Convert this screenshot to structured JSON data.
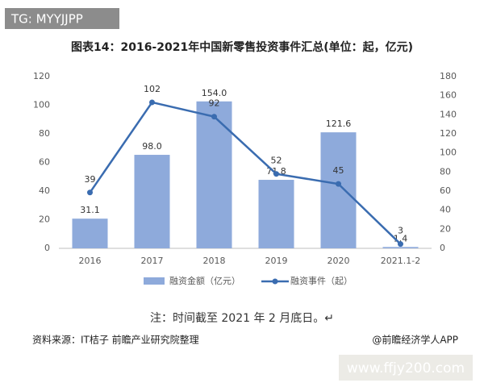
{
  "watermark_top": "TG: MYYJJPP",
  "chart_data": {
    "type": "combo",
    "title": "图表14：2016-2021年中国新零售投资事件汇总(单位：起，亿元)",
    "categories": [
      "2016",
      "2017",
      "2018",
      "2019",
      "2020",
      "2021.1-2"
    ],
    "series": [
      {
        "name": "融资金额（亿元）",
        "type": "bar",
        "axis": "y2",
        "color": "#8eaadb",
        "values": [
          31.1,
          98.0,
          154.0,
          71.8,
          121.6,
          1.4
        ],
        "value_labels": [
          "31.1",
          "98.0",
          "154.0",
          "71.8",
          "121.6",
          "1.4"
        ]
      },
      {
        "name": "融资事件（起）",
        "type": "line",
        "color": "#3a6cb0",
        "values": [
          39,
          102,
          92,
          52,
          45,
          3
        ]
      }
    ],
    "ylim": [
      0,
      120
    ],
    "yticks": [
      0,
      20,
      40,
      60,
      80,
      100,
      120
    ],
    "y2lim": [
      0,
      180
    ],
    "y2ticks": [
      0,
      20,
      40,
      60,
      80,
      100,
      120,
      140,
      160,
      180
    ],
    "grid": false
  },
  "note": "注：时间截至 2021 年 2 月底日。↵",
  "source": "资料来源：IT桔子 前瞻产业研究院整理",
  "credit": "@前瞻经济学人APP",
  "watermark_bottom": "www.ffjy200.com"
}
